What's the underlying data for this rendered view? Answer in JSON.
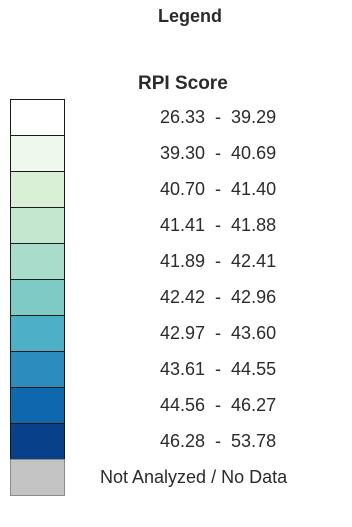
{
  "legend": {
    "title": "Legend",
    "subtitle": "RPI Score",
    "classes": [
      {
        "min": "26.33",
        "max": "39.29",
        "color": "#ffffff"
      },
      {
        "min": "39.30",
        "max": "40.69",
        "color": "#eef8ec"
      },
      {
        "min": "40.70",
        "max": "41.40",
        "color": "#daf0d6"
      },
      {
        "min": "41.41",
        "max": "41.88",
        "color": "#c3e7cf"
      },
      {
        "min": "41.89",
        "max": "42.41",
        "color": "#a9dcca"
      },
      {
        "min": "42.42",
        "max": "42.96",
        "color": "#7ecac4"
      },
      {
        "min": "42.97",
        "max": "43.60",
        "color": "#4eb0c6"
      },
      {
        "min": "43.61",
        "max": "44.55",
        "color": "#2d8cbe"
      },
      {
        "min": "44.56",
        "max": "46.27",
        "color": "#0f68ad"
      },
      {
        "min": "46.28",
        "max": "53.78",
        "color": "#08418a"
      }
    ],
    "separator": "-",
    "no_data": {
      "label": "Not Analyzed / No Data",
      "color": "#c3c3c3"
    }
  }
}
